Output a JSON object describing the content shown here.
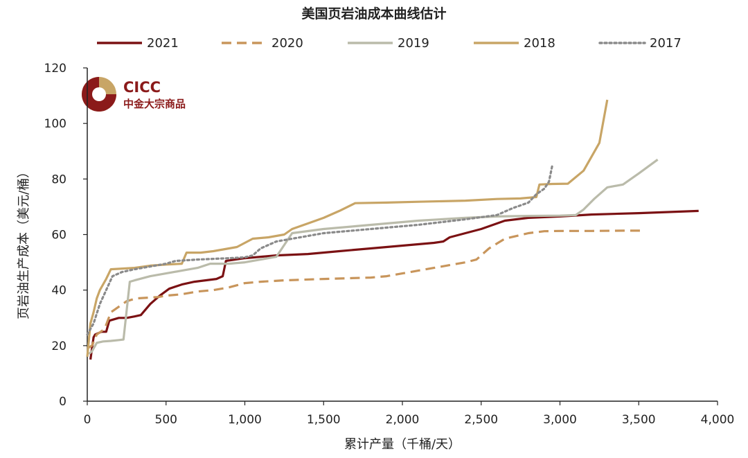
{
  "chart_data": {
    "type": "line",
    "title": "美国页岩油成本曲线估计",
    "xlabel": "累计产量（千桶/天）",
    "ylabel": "页岩油生产成本（美元/桶）",
    "xlim": [
      0,
      4000
    ],
    "ylim": [
      0,
      120
    ],
    "x_ticks": [
      0,
      500,
      1000,
      1500,
      2000,
      2500,
      3000,
      3500,
      4000
    ],
    "x_tick_labels": [
      "0",
      "500",
      "1,000",
      "1,500",
      "2,000",
      "2,500",
      "3,000",
      "3,500",
      "4,000"
    ],
    "y_ticks": [
      0,
      20,
      40,
      60,
      80,
      100,
      120
    ],
    "y_tick_labels": [
      "0",
      "20",
      "40",
      "60",
      "80",
      "100",
      "120"
    ],
    "legend_position": "top",
    "series": [
      {
        "name": "2021",
        "color": "#7b1113",
        "dash": "solid",
        "points": [
          [
            20,
            15
          ],
          [
            30,
            19
          ],
          [
            40,
            23
          ],
          [
            50,
            24
          ],
          [
            90,
            25
          ],
          [
            120,
            25
          ],
          [
            140,
            29
          ],
          [
            200,
            30
          ],
          [
            250,
            30
          ],
          [
            300,
            30.5
          ],
          [
            340,
            31
          ],
          [
            400,
            35
          ],
          [
            460,
            38
          ],
          [
            520,
            40.5
          ],
          [
            600,
            42
          ],
          [
            680,
            43
          ],
          [
            750,
            43.5
          ],
          [
            820,
            44
          ],
          [
            860,
            45
          ],
          [
            880,
            50.5
          ],
          [
            1000,
            51.5
          ],
          [
            1200,
            52.5
          ],
          [
            1400,
            53
          ],
          [
            1600,
            54
          ],
          [
            1800,
            55
          ],
          [
            2000,
            56
          ],
          [
            2200,
            57
          ],
          [
            2260,
            57.5
          ],
          [
            2300,
            59
          ],
          [
            2400,
            60.5
          ],
          [
            2500,
            62
          ],
          [
            2650,
            65
          ],
          [
            2800,
            66
          ],
          [
            3000,
            66.5
          ],
          [
            3200,
            67.2
          ],
          [
            3500,
            67.7
          ],
          [
            3880,
            68.5
          ]
        ]
      },
      {
        "name": "2020",
        "color": "#c8955b",
        "dash": "dash",
        "points": [
          [
            0,
            19
          ],
          [
            30,
            20
          ],
          [
            60,
            24
          ],
          [
            110,
            26
          ],
          [
            150,
            32
          ],
          [
            200,
            34
          ],
          [
            250,
            36
          ],
          [
            310,
            37
          ],
          [
            450,
            37.5
          ],
          [
            500,
            38
          ],
          [
            600,
            38.5
          ],
          [
            700,
            39.5
          ],
          [
            800,
            40
          ],
          [
            900,
            41
          ],
          [
            1000,
            42.5
          ],
          [
            1100,
            43
          ],
          [
            1250,
            43.5
          ],
          [
            1500,
            44
          ],
          [
            1800,
            44.5
          ],
          [
            1900,
            45
          ],
          [
            2000,
            46
          ],
          [
            2200,
            48
          ],
          [
            2400,
            50
          ],
          [
            2470,
            51
          ],
          [
            2550,
            55
          ],
          [
            2650,
            58.5
          ],
          [
            2800,
            60.5
          ],
          [
            2900,
            61.2
          ],
          [
            3000,
            61.3
          ],
          [
            3200,
            61.3
          ],
          [
            3400,
            61.4
          ],
          [
            3520,
            61.4
          ]
        ]
      },
      {
        "name": "2019",
        "color": "#babbaa",
        "dash": "solid",
        "points": [
          [
            10,
            17
          ],
          [
            30,
            18
          ],
          [
            60,
            21
          ],
          [
            100,
            21.5
          ],
          [
            150,
            21.7
          ],
          [
            200,
            22
          ],
          [
            230,
            22.2
          ],
          [
            270,
            43
          ],
          [
            300,
            43.5
          ],
          [
            400,
            45
          ],
          [
            500,
            46
          ],
          [
            600,
            47
          ],
          [
            700,
            48
          ],
          [
            780,
            49.5
          ],
          [
            900,
            49.5
          ],
          [
            1000,
            50
          ],
          [
            1100,
            51
          ],
          [
            1200,
            52
          ],
          [
            1300,
            60.5
          ],
          [
            1500,
            62
          ],
          [
            1700,
            63
          ],
          [
            1900,
            64
          ],
          [
            2100,
            65
          ],
          [
            2400,
            66
          ],
          [
            2600,
            66.5
          ],
          [
            2800,
            66.7
          ],
          [
            3000,
            66.8
          ],
          [
            3100,
            67
          ],
          [
            3150,
            69
          ],
          [
            3220,
            73
          ],
          [
            3300,
            77
          ],
          [
            3400,
            78
          ],
          [
            3500,
            82
          ],
          [
            3620,
            87
          ]
        ]
      },
      {
        "name": "2018",
        "color": "#c8a566",
        "dash": "solid",
        "points": [
          [
            0,
            16
          ],
          [
            20,
            28
          ],
          [
            40,
            32
          ],
          [
            60,
            37
          ],
          [
            80,
            40
          ],
          [
            120,
            44
          ],
          [
            150,
            47.5
          ],
          [
            300,
            48
          ],
          [
            400,
            48.8
          ],
          [
            500,
            49.2
          ],
          [
            600,
            49.5
          ],
          [
            630,
            53.5
          ],
          [
            720,
            53.5
          ],
          [
            800,
            54
          ],
          [
            950,
            55.5
          ],
          [
            1000,
            57
          ],
          [
            1050,
            58.5
          ],
          [
            1150,
            59
          ],
          [
            1250,
            60
          ],
          [
            1300,
            62
          ],
          [
            1400,
            64
          ],
          [
            1500,
            66
          ],
          [
            1600,
            68.5
          ],
          [
            1700,
            71.3
          ],
          [
            1900,
            71.5
          ],
          [
            2100,
            71.8
          ],
          [
            2400,
            72.2
          ],
          [
            2600,
            72.8
          ],
          [
            2750,
            73
          ],
          [
            2850,
            73.5
          ],
          [
            2870,
            78
          ],
          [
            2950,
            78.2
          ],
          [
            3050,
            78.3
          ],
          [
            3150,
            83
          ],
          [
            3200,
            88
          ],
          [
            3250,
            93
          ],
          [
            3300,
            108.5
          ]
        ]
      },
      {
        "name": "2017",
        "color": "#8a8a8a",
        "dash": "dot",
        "points": [
          [
            0,
            24
          ],
          [
            40,
            28
          ],
          [
            80,
            35
          ],
          [
            120,
            40
          ],
          [
            160,
            45
          ],
          [
            220,
            46.5
          ],
          [
            300,
            47.5
          ],
          [
            400,
            48.5
          ],
          [
            500,
            49.5
          ],
          [
            560,
            50.5
          ],
          [
            700,
            51
          ],
          [
            900,
            51.5
          ],
          [
            1000,
            51.8
          ],
          [
            1050,
            52.5
          ],
          [
            1100,
            55
          ],
          [
            1200,
            57.5
          ],
          [
            1300,
            58.5
          ],
          [
            1500,
            60.5
          ],
          [
            1800,
            62
          ],
          [
            2100,
            63.5
          ],
          [
            2400,
            65.5
          ],
          [
            2600,
            67
          ],
          [
            2700,
            69.5
          ],
          [
            2800,
            71.5
          ],
          [
            2850,
            74.5
          ],
          [
            2900,
            76.5
          ],
          [
            2930,
            79
          ],
          [
            2950,
            84.5
          ]
        ]
      }
    ]
  },
  "brand": {
    "name": "CICC",
    "subtitle": "中金大宗商品",
    "color_dark": "#8b1a1a",
    "color_gold": "#c8a566"
  }
}
